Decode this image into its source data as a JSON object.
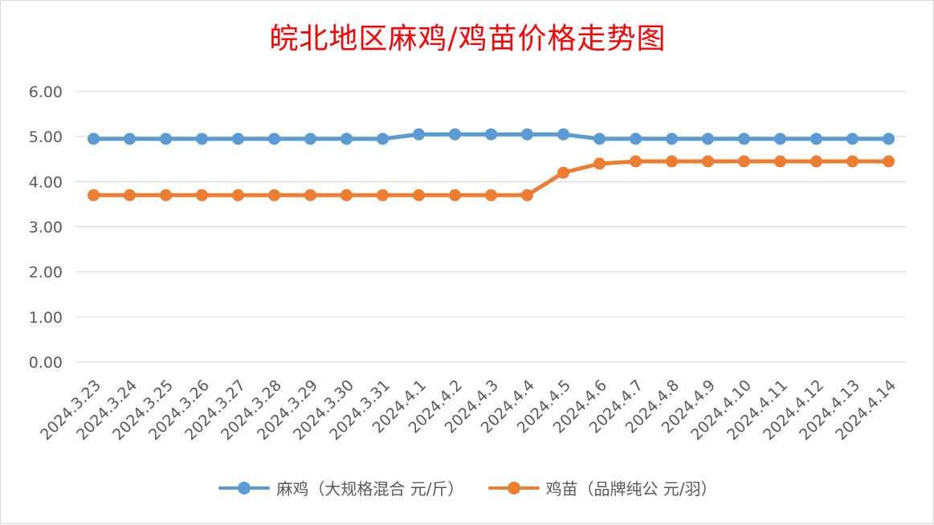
{
  "chart_data": {
    "type": "line",
    "title": "皖北地区麻鸡/鸡苗价格走势图",
    "categories": [
      "2024.3.23",
      "2024.3.24",
      "2024.3.25",
      "2024.3.26",
      "2024.3.27",
      "2024.3.28",
      "2024.3.29",
      "2024.3.30",
      "2024.3.31",
      "2024.4.1",
      "2024.4.2",
      "2024.4.3",
      "2024.4.4",
      "2024.4.5",
      "2024.4.6",
      "2024.4.7",
      "2024.4.8",
      "2024.4.9",
      "2024.4.10",
      "2024.4.11",
      "2024.4.12",
      "2024.4.13",
      "2024.4.14"
    ],
    "series": [
      {
        "name": "麻鸡（大规格混合 元/斤）",
        "color": "#5b9bd5",
        "values": [
          4.95,
          4.95,
          4.95,
          4.95,
          4.95,
          4.95,
          4.95,
          4.95,
          4.95,
          5.05,
          5.05,
          5.05,
          5.05,
          5.05,
          4.95,
          4.95,
          4.95,
          4.95,
          4.95,
          4.95,
          4.95,
          4.95,
          4.95
        ]
      },
      {
        "name": "鸡苗（品牌纯公 元/羽）",
        "color": "#ed7d31",
        "values": [
          3.7,
          3.7,
          3.7,
          3.7,
          3.7,
          3.7,
          3.7,
          3.7,
          3.7,
          3.7,
          3.7,
          3.7,
          3.7,
          4.2,
          4.4,
          4.45,
          4.45,
          4.45,
          4.45,
          4.45,
          4.45,
          4.45,
          4.45
        ]
      }
    ],
    "yticks": [
      "0.00",
      "1.00",
      "2.00",
      "3.00",
      "4.00",
      "5.00",
      "6.00"
    ],
    "ylim": [
      0,
      6
    ],
    "grid": true,
    "legend_position": "bottom"
  }
}
